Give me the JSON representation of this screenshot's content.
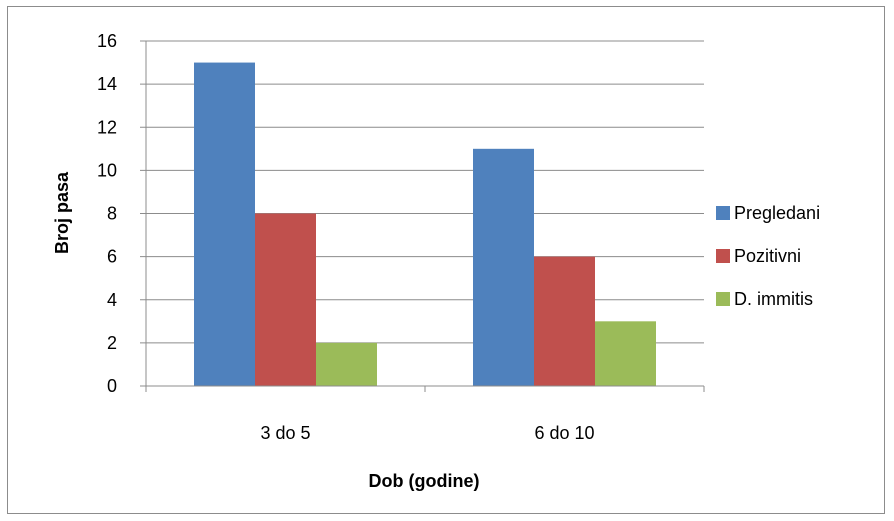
{
  "chart_data": {
    "type": "bar",
    "categories": [
      "3 do 5",
      "6 do 10"
    ],
    "series": [
      {
        "name": "Pregledani",
        "values": [
          15,
          11
        ],
        "color": "#4F81BD"
      },
      {
        "name": "Pozitivni",
        "values": [
          8,
          6
        ],
        "color": "#C0504D"
      },
      {
        "name": "D. immitis",
        "values": [
          2,
          3
        ],
        "color": "#9BBB59"
      }
    ],
    "title": "",
    "xlabel": "Dob (godine)",
    "ylabel": "Broj pasa",
    "ylim": [
      0,
      16
    ],
    "yticks": [
      0,
      2,
      4,
      6,
      8,
      10,
      12,
      14,
      16
    ],
    "grid": true,
    "legend_position": "right"
  }
}
